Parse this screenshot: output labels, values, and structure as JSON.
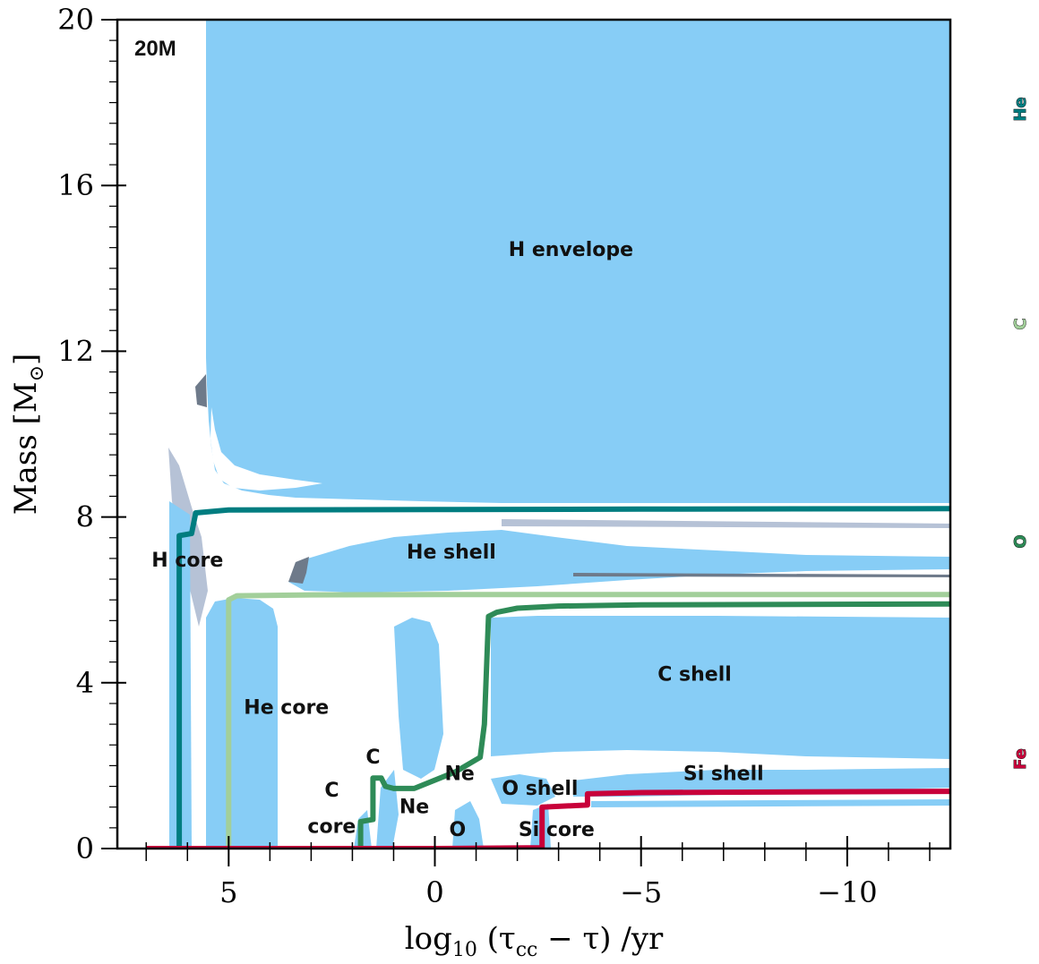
{
  "chart_data": {
    "type": "area",
    "title": "",
    "panel_tag": "20M",
    "xlabel": "log₁₀ (τcc − τ) /yr",
    "ylabel": "Mass [M⊙]",
    "xlim": [
      7.7,
      -12.5
    ],
    "ylim": [
      0,
      20
    ],
    "x_ticks": [
      5,
      0,
      -5,
      -10
    ],
    "x_tick_labels": [
      "5",
      "0",
      "−5",
      "−10"
    ],
    "y_ticks": [
      0,
      4,
      8,
      12,
      16,
      20
    ],
    "y_tick_labels": [
      "0",
      "4",
      "8",
      "12",
      "16",
      "20"
    ],
    "grid": false,
    "colors": {
      "convective": "#87cdf6",
      "h_core": "#007d80",
      "he_core": "#a2cf9a",
      "c_core": "#2e8b57",
      "fe_core": "#c8003a",
      "overshoot": "#6e7a8a"
    },
    "series": [
      {
        "name": "He",
        "color": "#007d80",
        "x": [
          7.0,
          6.2,
          6.2,
          5.9,
          5.8,
          5.0,
          0.0,
          -5.0,
          -12.5
        ],
        "y": [
          0.0,
          0.0,
          7.55,
          7.6,
          8.1,
          8.17,
          8.18,
          8.19,
          8.2
        ]
      },
      {
        "name": "C",
        "color": "#a2cf9a",
        "x": [
          5.0,
          5.0,
          4.8,
          3.0,
          0.0,
          -5.0,
          -12.5
        ],
        "y": [
          0.0,
          6.0,
          6.1,
          6.12,
          6.13,
          6.13,
          6.13
        ]
      },
      {
        "name": "O",
        "color": "#2e8b57",
        "x": [
          1.8,
          1.8,
          1.5,
          1.5,
          1.3,
          1.2,
          1.0,
          0.5,
          -0.5,
          -1.1,
          -1.2,
          -1.3,
          -1.5,
          -2.0,
          -3.0,
          -5.0,
          -12.5
        ],
        "y": [
          0.0,
          0.65,
          0.7,
          1.7,
          1.7,
          1.5,
          1.45,
          1.45,
          1.85,
          2.2,
          3.0,
          5.6,
          5.7,
          5.8,
          5.85,
          5.88,
          5.9
        ],
        "step_points": [
          [
            1.8,
            0.0
          ],
          [
            1.8,
            0.65
          ],
          [
            1.5,
            0.7
          ],
          [
            1.5,
            1.7
          ],
          [
            1.3,
            1.7
          ]
        ]
      },
      {
        "name": "Fe",
        "color": "#c8003a",
        "x": [
          7.0,
          4.0,
          0.0,
          -2.6,
          -2.6,
          -3.7,
          -3.7,
          -5.0,
          -12.5
        ],
        "y": [
          0.0,
          0.0,
          0.0,
          0.02,
          1.0,
          1.05,
          1.32,
          1.35,
          1.38
        ]
      }
    ],
    "side_labels": [
      "He",
      "C",
      "O",
      "Fe"
    ],
    "annotations": [
      {
        "text": "H envelope",
        "x": -3.3,
        "y": 14.3
      },
      {
        "text": "He shell",
        "x": -0.4,
        "y": 7.0
      },
      {
        "text": "H core",
        "x": 6.0,
        "y": 6.8
      },
      {
        "text": "He core",
        "x": 3.6,
        "y": 3.25
      },
      {
        "text": "C shell",
        "x": -6.3,
        "y": 4.05
      },
      {
        "text": "C",
        "x": 1.5,
        "y": 2.05
      },
      {
        "text": "C",
        "x": 2.5,
        "y": 1.25
      },
      {
        "text": "core",
        "x": 2.5,
        "y": 0.38
      },
      {
        "text": "Ne",
        "x": -0.6,
        "y": 1.65
      },
      {
        "text": "Ne",
        "x": 0.5,
        "y": 0.85
      },
      {
        "text": "O",
        "x": -0.55,
        "y": 0.3
      },
      {
        "text": "O shell",
        "x": -2.55,
        "y": 1.3
      },
      {
        "text": "Si shell",
        "x": -7.0,
        "y": 1.65
      },
      {
        "text": "Si core",
        "x": -2.95,
        "y": 0.3
      }
    ]
  }
}
